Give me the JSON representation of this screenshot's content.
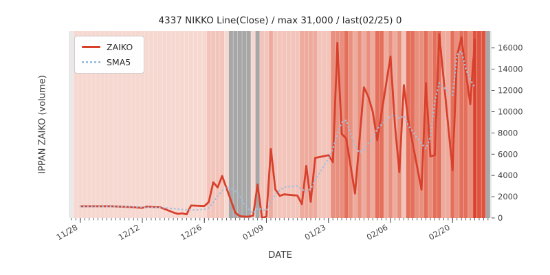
{
  "chart_data": {
    "type": "line",
    "title": "4337 NIKKO Line(Close) / max 31,000 / last(02/25) 0",
    "xlabel": "DATE",
    "ylabel": "IPPAN ZAIKO (volume)",
    "x_unit_note": "x = calendar days after 11/28",
    "xlim": [
      -2.6,
      92.8
    ],
    "ylim": [
      0,
      17600
    ],
    "grid": false,
    "legend_position": "upper-left",
    "y_ticks": [
      0,
      2000,
      4000,
      6000,
      8000,
      10000,
      12000,
      14000,
      16000
    ],
    "x_ticks": [
      {
        "day": 0,
        "label": "11/28"
      },
      {
        "day": 14,
        "label": "12/12"
      },
      {
        "day": 28,
        "label": "12/26"
      },
      {
        "day": 42,
        "label": "01/09"
      },
      {
        "day": 56,
        "label": "01/23"
      },
      {
        "day": 70,
        "label": "02/06"
      },
      {
        "day": 84,
        "label": "02/20"
      }
    ],
    "colors": {
      "plot_bg": "#e9e9e9",
      "tick": "#4d4d4d",
      "text": "#3f3f3f",
      "separator": "#ffffff"
    },
    "series": [
      {
        "name": "ZAIKO",
        "color": "#d8402c",
        "style": "solid",
        "width": 2.8,
        "points": [
          [
            0,
            1100
          ],
          [
            4,
            1100
          ],
          [
            7,
            1100
          ],
          [
            11,
            1030
          ],
          [
            14,
            950
          ],
          [
            15,
            1060
          ],
          [
            17,
            1010
          ],
          [
            18,
            1010
          ],
          [
            21,
            520
          ],
          [
            22,
            380
          ],
          [
            23,
            430
          ],
          [
            24,
            340
          ],
          [
            25,
            1170
          ],
          [
            28,
            1120
          ],
          [
            29,
            1500
          ],
          [
            30,
            3350
          ],
          [
            31,
            2870
          ],
          [
            32,
            3950
          ],
          [
            35,
            480
          ],
          [
            36,
            170
          ],
          [
            37,
            130
          ],
          [
            38,
            130
          ],
          [
            39,
            200
          ],
          [
            40,
            3150
          ],
          [
            41,
            0
          ],
          [
            42,
            130
          ],
          [
            43,
            6500
          ],
          [
            44,
            2700
          ],
          [
            45,
            2080
          ],
          [
            46,
            2220
          ],
          [
            49,
            2100
          ],
          [
            50,
            1300
          ],
          [
            51,
            4900
          ],
          [
            52,
            1520
          ],
          [
            53,
            5650
          ],
          [
            56,
            5900
          ],
          [
            57,
            5250
          ],
          [
            58,
            16480
          ],
          [
            59,
            7900
          ],
          [
            60,
            7480
          ],
          [
            62,
            2300
          ],
          [
            64,
            12300
          ],
          [
            65,
            11400
          ],
          [
            66,
            10000
          ],
          [
            67,
            7300
          ],
          [
            70,
            15200
          ],
          [
            71,
            8700
          ],
          [
            72,
            4300
          ],
          [
            73,
            12500
          ],
          [
            74,
            9200
          ],
          [
            77,
            2650
          ],
          [
            78,
            12700
          ],
          [
            79,
            5800
          ],
          [
            80,
            5900
          ],
          [
            81,
            17300
          ],
          [
            84,
            4480
          ],
          [
            85,
            15250
          ],
          [
            86,
            17000
          ],
          [
            87,
            13700
          ],
          [
            88,
            10700
          ],
          [
            89,
            16800
          ],
          [
            89,
            0
          ]
        ]
      },
      {
        "name": "SMA5",
        "color": "#a2c0dd",
        "style": "dotted",
        "width": 2.6,
        "points": [
          [
            0,
            1080
          ],
          [
            7,
            1080
          ],
          [
            11,
            1060
          ],
          [
            14,
            1010
          ],
          [
            18,
            990
          ],
          [
            21,
            880
          ],
          [
            23,
            790
          ],
          [
            25,
            740
          ],
          [
            28,
            800
          ],
          [
            29,
            950
          ],
          [
            30,
            1450
          ],
          [
            31,
            2050
          ],
          [
            32,
            2550
          ],
          [
            33,
            2900
          ],
          [
            34,
            2850
          ],
          [
            35,
            2500
          ],
          [
            36,
            2050
          ],
          [
            37,
            1300
          ],
          [
            38,
            800
          ],
          [
            39,
            450
          ],
          [
            40,
            900
          ],
          [
            41,
            780
          ],
          [
            42,
            680
          ],
          [
            43,
            1500
          ],
          [
            44,
            2250
          ],
          [
            45,
            2600
          ],
          [
            46,
            2900
          ],
          [
            49,
            3000
          ],
          [
            50,
            2700
          ],
          [
            51,
            2450
          ],
          [
            52,
            2750
          ],
          [
            53,
            3550
          ],
          [
            56,
            5600
          ],
          [
            57,
            6500
          ],
          [
            58,
            7900
          ],
          [
            59,
            9000
          ],
          [
            60,
            9200
          ],
          [
            62,
            6700
          ],
          [
            63,
            6150
          ],
          [
            64,
            6400
          ],
          [
            65,
            7000
          ],
          [
            66,
            7450
          ],
          [
            67,
            8400
          ],
          [
            70,
            9600
          ],
          [
            71,
            9700
          ],
          [
            72,
            9350
          ],
          [
            73,
            9600
          ],
          [
            74,
            8700
          ],
          [
            77,
            7000
          ],
          [
            78,
            6500
          ],
          [
            79,
            7600
          ],
          [
            80,
            11000
          ],
          [
            81,
            12700
          ],
          [
            84,
            11500
          ],
          [
            85,
            15350
          ],
          [
            86,
            15700
          ],
          [
            87,
            14000
          ],
          [
            88,
            13000
          ],
          [
            89,
            12300
          ]
        ]
      }
    ],
    "background_bands": {
      "day_start": -1,
      "palette": {
        "0": "#f6d8d1",
        "1": "#f2c4ba",
        "2": "#eeab9d",
        "3": "#e98f7d",
        "4": "#e4705c",
        "5": "#df5440",
        "G": "#a7a7a7"
      },
      "heat": [
        "0",
        "0",
        "0",
        "0",
        "0",
        "0",
        "0",
        "0",
        "0",
        "0",
        "0",
        "0",
        "0",
        "0",
        "0",
        "0",
        "0",
        "0",
        "0",
        "0",
        "0",
        "0",
        "0",
        "0",
        "0",
        "0",
        "0",
        "0",
        "0",
        "0",
        "1",
        "1",
        "1",
        "1",
        "0",
        "G",
        "G",
        "G",
        "G",
        "G",
        "0",
        "G",
        "1",
        "1",
        "2",
        "1",
        "1",
        "1",
        "1",
        "1",
        "1",
        "2",
        "2",
        "2",
        "2",
        "1",
        "1",
        "1",
        "3",
        "3",
        "3",
        "4",
        "3",
        "2",
        "3",
        "2",
        "3",
        "2",
        "4",
        "4",
        "2",
        "3",
        "2",
        "3",
        "1",
        "4",
        "4",
        "3",
        "3",
        "4",
        "3",
        "4",
        "4",
        "2",
        "2",
        "4",
        "3",
        "4",
        "4",
        "3",
        "5",
        "5",
        "5",
        "G"
      ]
    }
  },
  "legend": {
    "items": [
      {
        "label": "ZAIKO"
      },
      {
        "label": "SMA5"
      }
    ]
  }
}
